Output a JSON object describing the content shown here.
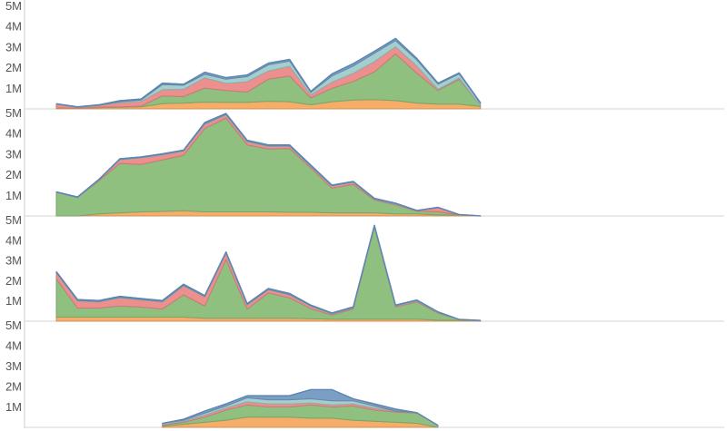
{
  "chart_data": {
    "type": "area",
    "stacked": true,
    "legend": "none",
    "grid": false,
    "x_count": 31,
    "y_ticks": [
      {
        "value": 1000000,
        "label": "1M"
      },
      {
        "value": 2000000,
        "label": "2M"
      },
      {
        "value": 3000000,
        "label": "3M"
      },
      {
        "value": 4000000,
        "label": "4M"
      },
      {
        "value": 5000000,
        "label": "5M"
      }
    ],
    "series_colors": [
      "#f5ad68",
      "#8fc07f",
      "#ec8f8d",
      "#a3cfcf",
      "#7b9ec5"
    ],
    "panels": [
      {
        "ylim": [
          0,
          5200000
        ],
        "x_start": 0,
        "series": [
          {
            "values": [
              50000,
              30000,
              60000,
              80000,
              100000,
              250000,
              280000,
              330000,
              320000,
              320000,
              370000,
              350000,
              200000,
              350000,
              430000,
              450000,
              400000,
              280000,
              230000,
              230000,
              120000
            ]
          },
          {
            "values": [
              0,
              0,
              20000,
              20000,
              30000,
              380000,
              320000,
              680000,
              570000,
              500000,
              1070000,
              1250000,
              330000,
              650000,
              900000,
              1350000,
              2270000,
              1450000,
              670000,
              1200000,
              50000
            ]
          },
          {
            "values": [
              180000,
              50000,
              80000,
              200000,
              230000,
              300000,
              350000,
              500000,
              350000,
              500000,
              400000,
              470000,
              150000,
              300000,
              400000,
              500000,
              350000,
              350000,
              50000,
              70000,
              0
            ]
          },
          {
            "values": [
              0,
              0,
              10000,
              50000,
              70000,
              250000,
              200000,
              170000,
              200000,
              250000,
              300000,
              250000,
              120000,
              300000,
              350000,
              400000,
              300000,
              300000,
              250000,
              200000,
              100000
            ]
          },
          {
            "values": [
              20000,
              20000,
              30000,
              50000,
              50000,
              70000,
              50000,
              100000,
              80000,
              80000,
              80000,
              80000,
              50000,
              100000,
              120000,
              100000,
              100000,
              70000,
              50000,
              50000,
              30000
            ]
          }
        ]
      },
      {
        "ylim": [
          0,
          5200000
        ],
        "x_start": 0,
        "series": [
          {
            "values": [
              0,
              0,
              100000,
              150000,
              200000,
              220000,
              250000,
              200000,
              200000,
              200000,
              200000,
              180000,
              180000,
              150000,
              150000,
              150000,
              100000,
              100000,
              50000,
              50000,
              0
            ]
          },
          {
            "values": [
              1150000,
              900000,
              1600000,
              2400000,
              2300000,
              2500000,
              2700000,
              4050000,
              4550000,
              3250000,
              3050000,
              3100000,
              2150000,
              1200000,
              1380000,
              620000,
              440000,
              130000,
              150000,
              10000,
              5000
            ]
          },
          {
            "values": [
              0,
              0,
              50000,
              180000,
              320000,
              250000,
              200000,
              200000,
              150000,
              150000,
              120000,
              100000,
              80000,
              100000,
              100000,
              40000,
              40000,
              20000,
              200000,
              5000,
              0
            ]
          },
          {
            "values": [
              0,
              0,
              0,
              20000,
              20000,
              20000,
              20000,
              30000,
              30000,
              30000,
              30000,
              30000,
              20000,
              20000,
              20000,
              20000,
              20000,
              0,
              0,
              0,
              0
            ]
          },
          {
            "values": [
              20000,
              20000,
              20000,
              30000,
              30000,
              30000,
              30000,
              60000,
              50000,
              50000,
              50000,
              40000,
              40000,
              30000,
              30000,
              30000,
              20000,
              20000,
              20000,
              5000,
              0
            ]
          }
        ]
      },
      {
        "ylim": [
          0,
          5200000
        ],
        "x_start": 0,
        "series": [
          {
            "values": [
              200000,
              200000,
              200000,
              200000,
              200000,
              200000,
              200000,
              150000,
              150000,
              150000,
              150000,
              150000,
              120000,
              100000,
              100000,
              100000,
              100000,
              100000,
              50000,
              50000,
              30000
            ]
          },
          {
            "values": [
              1900000,
              450000,
              450000,
              550000,
              500000,
              400000,
              1100000,
              600000,
              2900000,
              450000,
              1250000,
              1000000,
              500000,
              200000,
              500000,
              4550000,
              600000,
              850000,
              350000,
              30000,
              0
            ]
          },
          {
            "values": [
              300000,
              350000,
              300000,
              400000,
              350000,
              350000,
              450000,
              450000,
              300000,
              200000,
              150000,
              150000,
              120000,
              50000,
              50000,
              30000,
              50000,
              50000,
              30000,
              0,
              0
            ]
          },
          {
            "values": [
              0,
              20000,
              20000,
              30000,
              20000,
              20000,
              20000,
              20000,
              20000,
              20000,
              20000,
              20000,
              20000,
              20000,
              20000,
              20000,
              20000,
              20000,
              10000,
              0,
              0
            ]
          },
          {
            "values": [
              50000,
              50000,
              50000,
              50000,
              50000,
              50000,
              60000,
              50000,
              50000,
              50000,
              50000,
              50000,
              40000,
              40000,
              40000,
              40000,
              30000,
              30000,
              20000,
              10000,
              10000
            ]
          }
        ]
      },
      {
        "ylim": [
          0,
          5200000
        ],
        "x_start": 5,
        "series": [
          {
            "values": [
              50000,
              150000,
              250000,
              350000,
              500000,
              500000,
              500000,
              450000,
              450000,
              350000,
              300000,
              250000,
              200000,
              0
            ]
          },
          {
            "values": [
              50000,
              100000,
              250000,
              500000,
              600000,
              500000,
              500000,
              650000,
              550000,
              700000,
              550000,
              500000,
              500000,
              100000
            ]
          },
          {
            "values": [
              50000,
              50000,
              100000,
              100000,
              150000,
              150000,
              150000,
              100000,
              100000,
              100000,
              100000,
              50000,
              20000,
              0
            ]
          },
          {
            "values": [
              50000,
              50000,
              100000,
              100000,
              200000,
              200000,
              200000,
              200000,
              200000,
              150000,
              100000,
              0,
              0,
              0
            ]
          },
          {
            "values": [
              0,
              50000,
              100000,
              100000,
              100000,
              200000,
              200000,
              450000,
              550000,
              100000,
              100000,
              100000,
              0,
              0
            ]
          }
        ]
      }
    ]
  }
}
